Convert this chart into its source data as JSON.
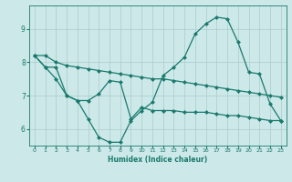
{
  "xlabel": "Humidex (Indice chaleur)",
  "bg_color": "#cce8e8",
  "line_color": "#1a7a6e",
  "grid_color": "#aacccc",
  "xlim": [
    -0.5,
    23.5
  ],
  "ylim": [
    5.5,
    9.7
  ],
  "yticks": [
    6,
    7,
    8,
    9
  ],
  "xticks": [
    0,
    1,
    2,
    3,
    4,
    5,
    6,
    7,
    8,
    9,
    10,
    11,
    12,
    13,
    14,
    15,
    16,
    17,
    18,
    19,
    20,
    21,
    22,
    23
  ],
  "series1": {
    "x": [
      0,
      1,
      2,
      3,
      4,
      5,
      6,
      7,
      8,
      9,
      10,
      11,
      12,
      13,
      14,
      15,
      16,
      17,
      18,
      19,
      20,
      21,
      22,
      23
    ],
    "y": [
      8.2,
      8.2,
      8.0,
      7.9,
      7.85,
      7.8,
      7.75,
      7.7,
      7.65,
      7.6,
      7.55,
      7.5,
      7.5,
      7.45,
      7.4,
      7.35,
      7.3,
      7.25,
      7.2,
      7.15,
      7.1,
      7.05,
      7.0,
      6.95
    ]
  },
  "series2": {
    "x": [
      0,
      1,
      2,
      3,
      4,
      5,
      6,
      7,
      8,
      9,
      10,
      11,
      12,
      13,
      14,
      15,
      16,
      17,
      18,
      19,
      20,
      21,
      22,
      23
    ],
    "y": [
      8.2,
      7.85,
      7.85,
      7.0,
      6.85,
      6.85,
      7.05,
      7.45,
      7.4,
      6.3,
      6.65,
      6.55,
      6.55,
      6.55,
      6.5,
      6.5,
      6.5,
      6.45,
      6.4,
      6.4,
      6.35,
      6.3,
      6.25,
      6.25
    ]
  },
  "series3": {
    "x": [
      0,
      1,
      2,
      3,
      4,
      5,
      6,
      7,
      8,
      9,
      10,
      11,
      12,
      13,
      14,
      15,
      16,
      17,
      18,
      19,
      20,
      21,
      22,
      23
    ],
    "y": [
      8.2,
      7.85,
      7.5,
      7.0,
      6.85,
      6.3,
      5.75,
      5.6,
      5.6,
      6.25,
      6.55,
      6.8,
      7.6,
      7.85,
      8.15,
      8.85,
      9.15,
      9.35,
      9.3,
      8.6,
      7.7,
      7.65,
      6.75,
      6.25
    ]
  }
}
